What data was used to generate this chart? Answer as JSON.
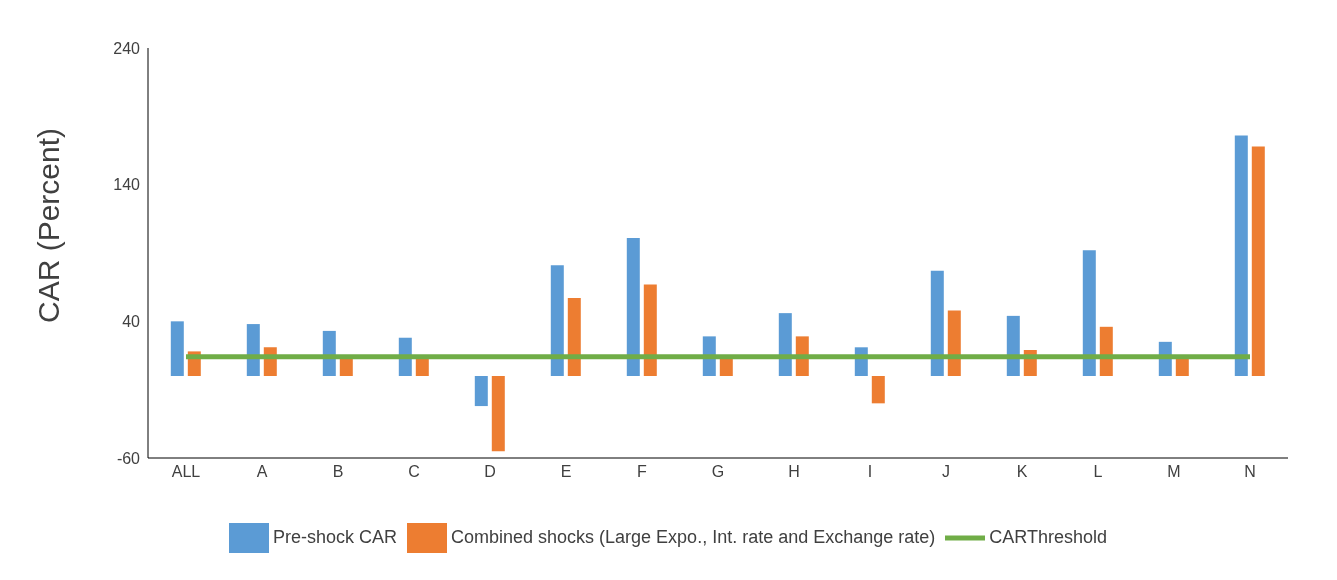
{
  "chart_data": {
    "type": "bar",
    "ylabel": "CAR (Percent)",
    "categories": [
      "ALL",
      "A",
      "B",
      "C",
      "D",
      "E",
      "F",
      "G",
      "H",
      "I",
      "J",
      "K",
      "L",
      "M",
      "N"
    ],
    "series": [
      {
        "name": "Pre-shock CAR",
        "color": "#5b9bd5",
        "values": [
          40,
          38,
          33,
          28,
          -22,
          81,
          101,
          29,
          46,
          21,
          77,
          44,
          92,
          25,
          176
        ]
      },
      {
        "name": "Combined shocks (Large Expo., Int. rate and Exchange rate)",
        "color": "#ed7d31",
        "values": [
          18,
          21,
          14,
          14,
          -55,
          57,
          67,
          14,
          29,
          -20,
          48,
          19,
          36,
          14,
          168
        ]
      },
      {
        "name": "CARThreshold",
        "type": "line",
        "color": "#70ad47",
        "values": [
          14,
          14,
          14,
          14,
          14,
          14,
          14,
          14,
          14,
          14,
          14,
          14,
          14,
          14,
          14
        ]
      }
    ],
    "ylim": [
      -60,
      240
    ],
    "yticks": [
      -60,
      40,
      140,
      240
    ],
    "legend": "bottom",
    "marker": "none",
    "line_style": "solid"
  }
}
